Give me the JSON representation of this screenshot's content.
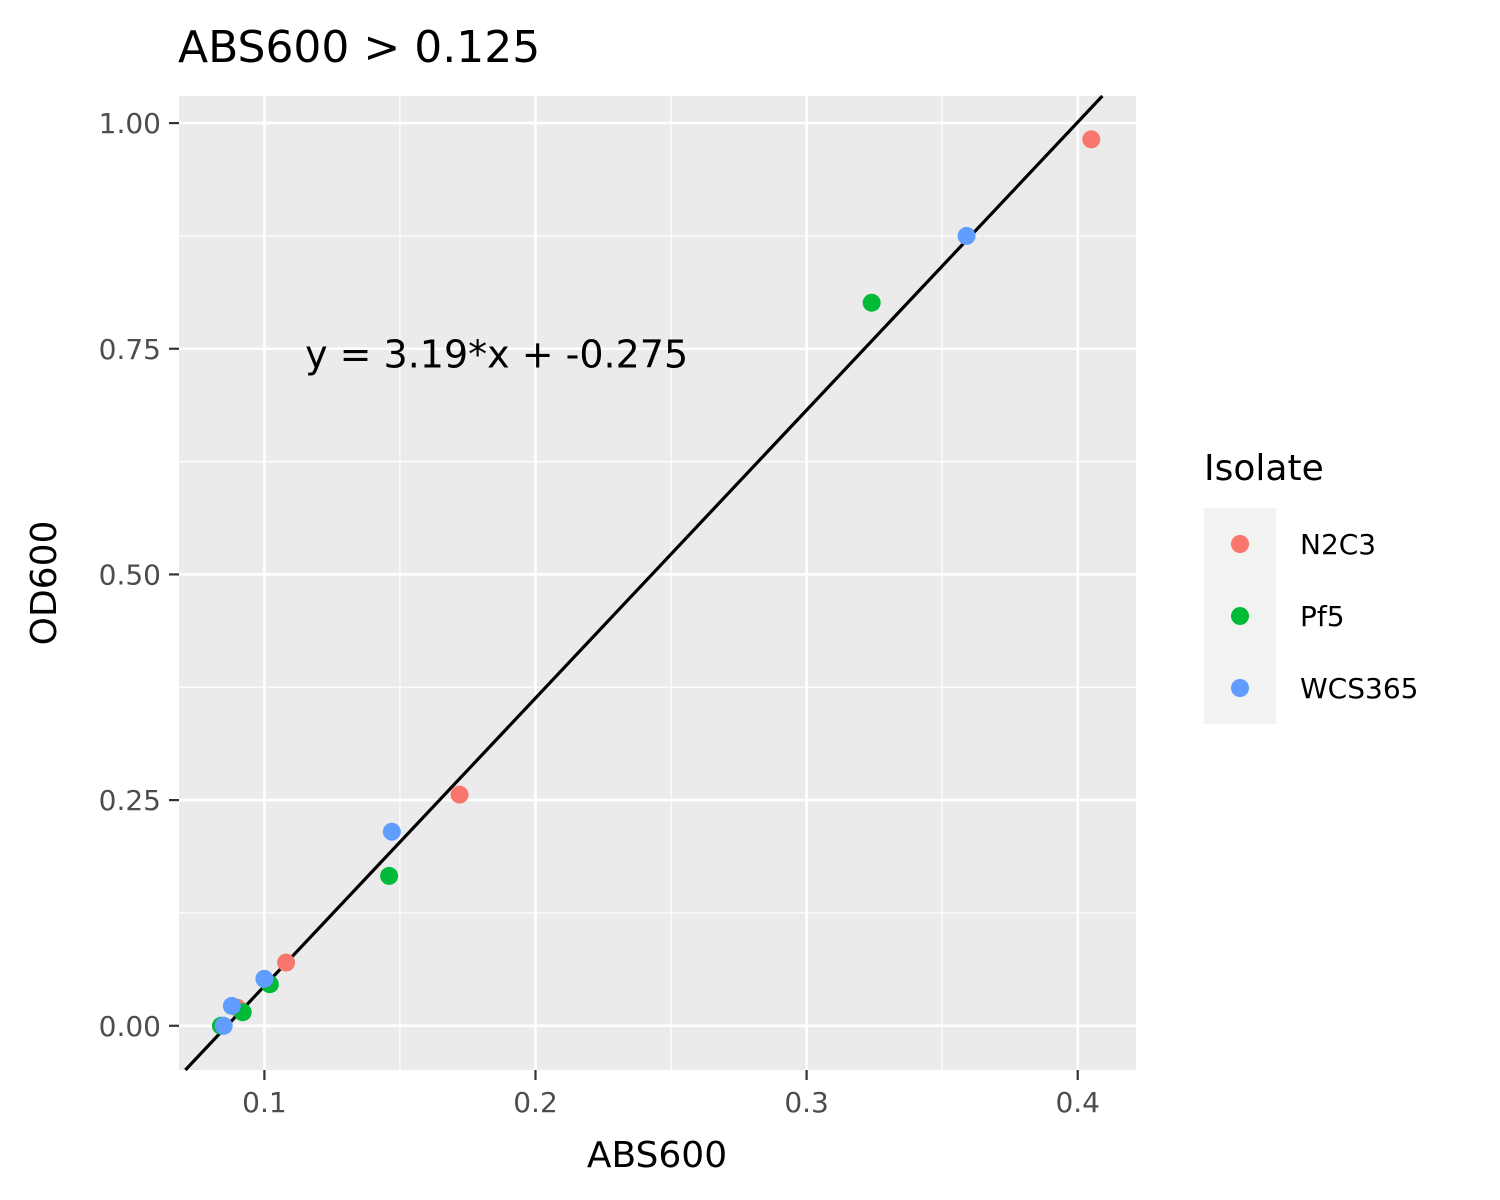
{
  "chart_data": {
    "type": "scatter",
    "title": "ABS600 > 0.125",
    "xlabel": "ABS600",
    "ylabel": "OD600",
    "xlim": [
      0.0685,
      0.4215
    ],
    "ylim": [
      -0.049,
      1.03
    ],
    "x_ticks": [
      0.1,
      0.2,
      0.3,
      0.4
    ],
    "x_tick_labels": [
      "0.1",
      "0.2",
      "0.3",
      "0.4"
    ],
    "y_ticks": [
      0.0,
      0.25,
      0.5,
      0.75,
      1.0
    ],
    "y_tick_labels": [
      "0.00",
      "0.25",
      "0.50",
      "0.75",
      "1.00"
    ],
    "grid": true,
    "legend": {
      "title": "Isolate",
      "position": "right"
    },
    "annotation": {
      "text": "y = 3.19*x + -0.275",
      "x": 0.115,
      "y": 0.745
    },
    "fit_line": {
      "slope": 3.19,
      "intercept": -0.275
    },
    "series": [
      {
        "name": "N2C3",
        "color": "#F8766D",
        "x": [
          0.09,
          0.108,
          0.172,
          0.405
        ],
        "y": [
          0.02,
          0.07,
          0.256,
          0.982
        ]
      },
      {
        "name": "Pf5",
        "color": "#00BA38",
        "x": [
          0.084,
          0.092,
          0.102,
          0.146,
          0.324
        ],
        "y": [
          0.0,
          0.015,
          0.046,
          0.166,
          0.801
        ]
      },
      {
        "name": "WCS365",
        "color": "#619CFF",
        "x": [
          0.085,
          0.088,
          0.1,
          0.147,
          0.359
        ],
        "y": [
          0.0,
          0.022,
          0.052,
          0.215,
          0.875
        ]
      }
    ]
  }
}
